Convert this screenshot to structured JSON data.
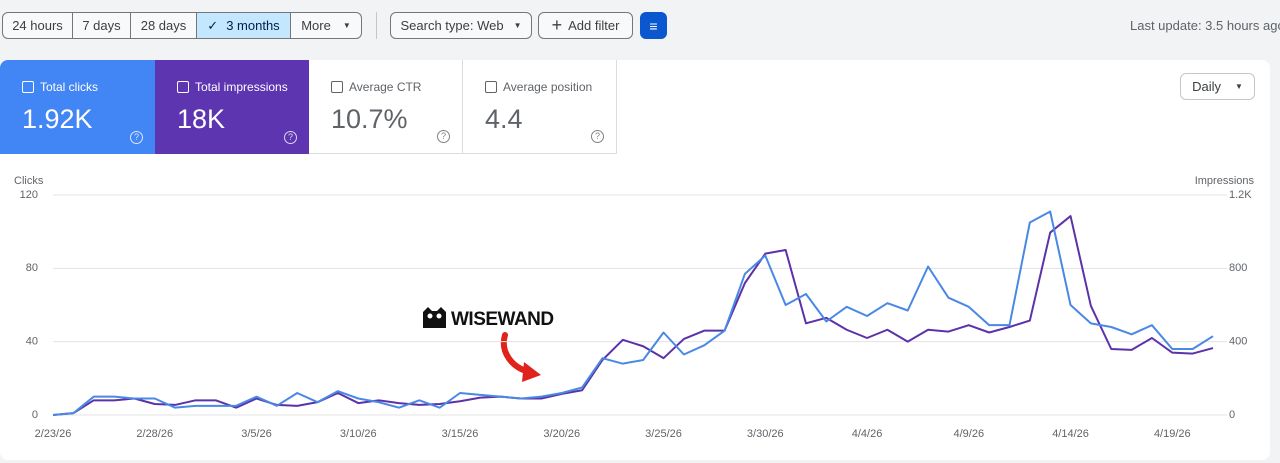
{
  "toolbar": {
    "ranges": [
      "24 hours",
      "7 days",
      "28 days",
      "3 months",
      "More"
    ],
    "search_type": "Search type: Web",
    "add_filter": "Add filter",
    "last_update": "Last update: 3.5 hours ago"
  },
  "metric_cards": [
    {
      "label": "Total clicks",
      "value": "1.92K"
    },
    {
      "label": "Total impressions",
      "value": "18K"
    },
    {
      "label": "Average CTR",
      "value": "10.7%"
    },
    {
      "label": "Average position",
      "value": "4.4"
    }
  ],
  "granularity": "Daily",
  "chart_data": {
    "type": "line",
    "y_label": "Clicks",
    "y2_label": "Impressions",
    "annotation": "WISEWAND",
    "x": [
      "2/23/26",
      null,
      null,
      null,
      null,
      "2/28/26",
      null,
      null,
      null,
      null,
      "3/5/26",
      null,
      null,
      null,
      null,
      "3/10/26",
      null,
      null,
      null,
      null,
      "3/15/26",
      null,
      null,
      null,
      null,
      "3/20/26",
      null,
      null,
      null,
      null,
      "3/25/26",
      null,
      null,
      null,
      null,
      "3/30/26",
      null,
      null,
      null,
      null,
      "4/4/26",
      null,
      null,
      null,
      null,
      "4/9/26",
      null,
      null,
      null,
      null,
      "4/14/26",
      null,
      null,
      null,
      null,
      "4/19/26",
      null,
      null
    ],
    "ylim": [
      0,
      120
    ],
    "yticks": [
      0,
      40,
      80,
      120
    ],
    "y2lim": [
      0,
      1200
    ],
    "y2ticks": [
      0,
      400,
      800,
      {
        "value": 1200,
        "label": "1.2K"
      }
    ],
    "grid": true,
    "series": [
      {
        "color": "#4a88e6",
        "values": [
          0,
          1,
          10,
          10,
          9,
          9,
          4,
          5,
          5,
          5,
          10,
          5,
          12,
          7,
          13,
          9,
          7,
          4,
          8,
          4,
          12,
          11,
          10,
          9,
          10,
          12,
          15,
          31,
          28,
          30,
          45,
          33,
          38,
          46,
          77,
          87,
          60,
          66,
          51,
          59,
          54,
          61,
          57,
          81,
          64,
          59,
          49,
          49,
          105,
          111,
          60,
          50,
          48,
          44,
          49,
          36,
          36,
          43
        ]
      },
      {
        "axis": "y2",
        "color": "#5b32a8",
        "values": [
          0,
          10,
          80,
          80,
          90,
          60,
          55,
          80,
          80,
          40,
          90,
          55,
          50,
          70,
          120,
          65,
          80,
          65,
          55,
          60,
          75,
          95,
          100,
          90,
          90,
          115,
          135,
          300,
          410,
          375,
          310,
          415,
          460,
          460,
          720,
          880,
          900,
          500,
          530,
          465,
          420,
          465,
          400,
          465,
          455,
          490,
          450,
          480,
          515,
          995,
          1085,
          595,
          360,
          355,
          420,
          340,
          335,
          365
        ]
      }
    ]
  }
}
